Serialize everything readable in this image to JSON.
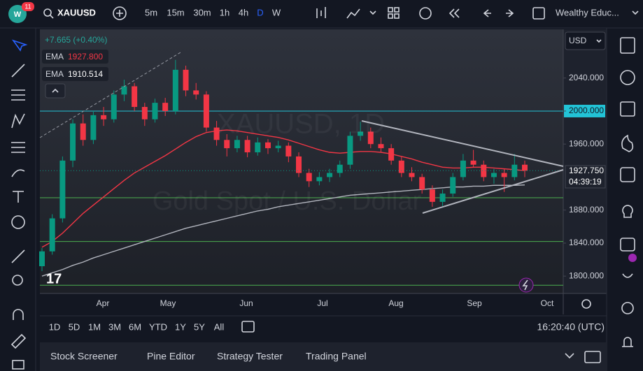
{
  "toolbar": {
    "badge": "11",
    "symbol": "XAUUSD",
    "intervals": [
      "5m",
      "15m",
      "30m",
      "1h",
      "4h",
      "D",
      "W"
    ],
    "active_interval": 5,
    "account": "Wealthy Educ..."
  },
  "legend": {
    "change": "+7.665 (+0.40%)"
  },
  "currency": "USD",
  "chart_data": {
    "type": "candlestick",
    "watermark": [
      "XAUUSD, 1D",
      "Gold Spot / U.S. Dollar"
    ],
    "candles": [
      [
        1812,
        1834,
        1806,
        1830
      ],
      [
        1830,
        1875,
        1826,
        1870
      ],
      [
        1870,
        1945,
        1865,
        1940
      ],
      [
        1940,
        1990,
        1932,
        1985
      ],
      [
        1985,
        1996,
        1958,
        1965
      ],
      [
        1965,
        2000,
        1960,
        1995
      ],
      [
        1995,
        2005,
        1982,
        1990
      ],
      [
        1990,
        2025,
        1986,
        2020
      ],
      [
        2020,
        2038,
        2012,
        2030
      ],
      [
        2030,
        2034,
        2000,
        2005
      ],
      [
        2005,
        2010,
        1982,
        1990
      ],
      [
        1990,
        2015,
        1986,
        2010
      ],
      [
        2010,
        2016,
        1994,
        2000
      ],
      [
        2000,
        2062,
        1996,
        2050
      ],
      [
        2050,
        2055,
        2018,
        2025
      ],
      [
        2025,
        2034,
        2014,
        2020
      ],
      [
        2020,
        2024,
        1975,
        1980
      ],
      [
        1980,
        1988,
        1958,
        1965
      ],
      [
        1965,
        1972,
        1945,
        1955
      ],
      [
        1955,
        1970,
        1950,
        1965
      ],
      [
        1965,
        1970,
        1944,
        1950
      ],
      [
        1950,
        1968,
        1946,
        1962
      ],
      [
        1962,
        1966,
        1948,
        1955
      ],
      [
        1955,
        1964,
        1950,
        1958
      ],
      [
        1958,
        1962,
        1938,
        1945
      ],
      [
        1945,
        1950,
        1920,
        1925
      ],
      [
        1925,
        1930,
        1908,
        1915
      ],
      [
        1915,
        1926,
        1910,
        1920
      ],
      [
        1920,
        1930,
        1914,
        1925
      ],
      [
        1925,
        1940,
        1920,
        1935
      ],
      [
        1935,
        1975,
        1930,
        1970
      ],
      [
        1970,
        1987,
        1964,
        1975
      ],
      [
        1975,
        1980,
        1955,
        1960
      ],
      [
        1960,
        1968,
        1950,
        1955
      ],
      [
        1955,
        1960,
        1935,
        1940
      ],
      [
        1940,
        1945,
        1920,
        1925
      ],
      [
        1925,
        1932,
        1915,
        1920
      ],
      [
        1920,
        1924,
        1900,
        1905
      ],
      [
        1905,
        1910,
        1884,
        1890
      ],
      [
        1890,
        1905,
        1885,
        1900
      ],
      [
        1900,
        1925,
        1896,
        1920
      ],
      [
        1920,
        1948,
        1916,
        1940
      ],
      [
        1940,
        1953,
        1932,
        1935
      ],
      [
        1935,
        1940,
        1915,
        1920
      ],
      [
        1920,
        1930,
        1912,
        1925
      ],
      [
        1925,
        1930,
        1902,
        1920
      ],
      [
        1920,
        1948,
        1916,
        1935
      ],
      [
        1935,
        1940,
        1920,
        1927.75
      ]
    ],
    "series": [
      {
        "name": "EMA",
        "last_label": "1927.800",
        "color": "#f23645",
        "values": [
          1835,
          1842,
          1852,
          1864,
          1876,
          1886,
          1896,
          1906,
          1916,
          1925,
          1932,
          1939,
          1946,
          1954,
          1962,
          1969,
          1974,
          1976,
          1977,
          1976,
          1974,
          1972,
          1970,
          1968,
          1965,
          1961,
          1957,
          1953,
          1950,
          1949,
          1950,
          1951,
          1951,
          1950,
          1948,
          1945,
          1942,
          1938,
          1935,
          1932,
          1931,
          1931,
          1932,
          1932,
          1931,
          1930,
          1929,
          1927.8
        ]
      },
      {
        "name": "EMA",
        "last_label": "1910.514",
        "color": "#b2b5be",
        "values": [
          1800,
          1804,
          1808,
          1813,
          1817,
          1822,
          1826,
          1830,
          1834,
          1838,
          1842,
          1846,
          1850,
          1854,
          1858,
          1861,
          1864,
          1867,
          1870,
          1873,
          1876,
          1879,
          1881,
          1884,
          1886,
          1888,
          1890,
          1892,
          1894,
          1896,
          1898,
          1899,
          1900,
          1901,
          1902,
          1903,
          1904,
          1905,
          1906,
          1907,
          1908,
          1908,
          1909,
          1909,
          1910,
          1910,
          1910,
          1910.514
        ]
      }
    ],
    "levels": [
      {
        "value": 2000,
        "color": "#22c3d6"
      },
      {
        "value": 1895,
        "color": "#4caf50"
      },
      {
        "value": 1842,
        "color": "#4caf50"
      },
      {
        "value": 1789,
        "color": "#4caf50"
      }
    ],
    "ylim": [
      1779,
      2099
    ],
    "yticks": [
      {
        "value": 2040,
        "label": "2040.000"
      },
      {
        "value": 2000,
        "label": "2000.000"
      },
      {
        "value": 1960,
        "label": "1960.000"
      },
      {
        "value": 1880,
        "label": "1880.000"
      },
      {
        "value": 1840,
        "label": "1840.000"
      },
      {
        "value": 1800,
        "label": "1800.000"
      }
    ],
    "months": [
      "Apr",
      "May",
      "Jun",
      "Jul",
      "Aug",
      "Sep",
      "Oct"
    ],
    "price_label": "1927.750",
    "countdown": "04:39:19"
  },
  "ranges": [
    "1D",
    "5D",
    "1M",
    "3M",
    "6M",
    "YTD",
    "1Y",
    "5Y",
    "All"
  ],
  "clock": "16:20:40 (UTC)",
  "tabs": [
    "Stock Screener",
    "Pine Editor",
    "Strategy Tester",
    "Trading Panel"
  ]
}
